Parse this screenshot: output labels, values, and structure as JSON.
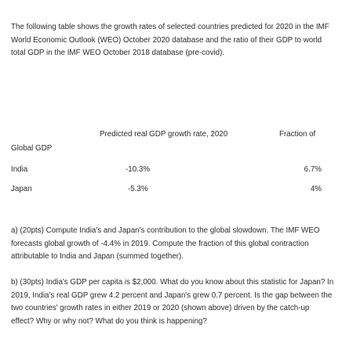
{
  "intro": "The following table shows the growth rates of selected countries predicted for 2020 in the IMF World Economic Outlook (WEO) October 2020 database and the ratio of their GDP to world total GDP in the IMF WEO October 2018 database (pre-covid).",
  "table": {
    "columns": [
      "Predicted real GDP growth rate, 2020",
      "Fraction of"
    ],
    "columns_continued": "Global GDP",
    "rows": [
      [
        "India",
        "-10.3%",
        "6.7%"
      ],
      [
        "Japan",
        "-5.3%",
        "4%"
      ]
    ]
  },
  "questions": [
    "a) (20pts) Compute India's and Japan's contribution to the global slowdown. The IMF WEO forecasts global growth of -4.4% in 2019. Compute the fraction of this global contraction attributable to India and Japan (summed together).",
    "b) (30pts) India's GDP per capita is $2,000. What do you know about this statistic for Japan? In 2019, India's real GDP grew 4.2 percent and Japan's grew 0.7 percent. Is the gap between the two countries' growth rates in either 2019 or 2020 (shown above) driven by the catch-up effect? Why or why not? What do you think is happening?"
  ]
}
